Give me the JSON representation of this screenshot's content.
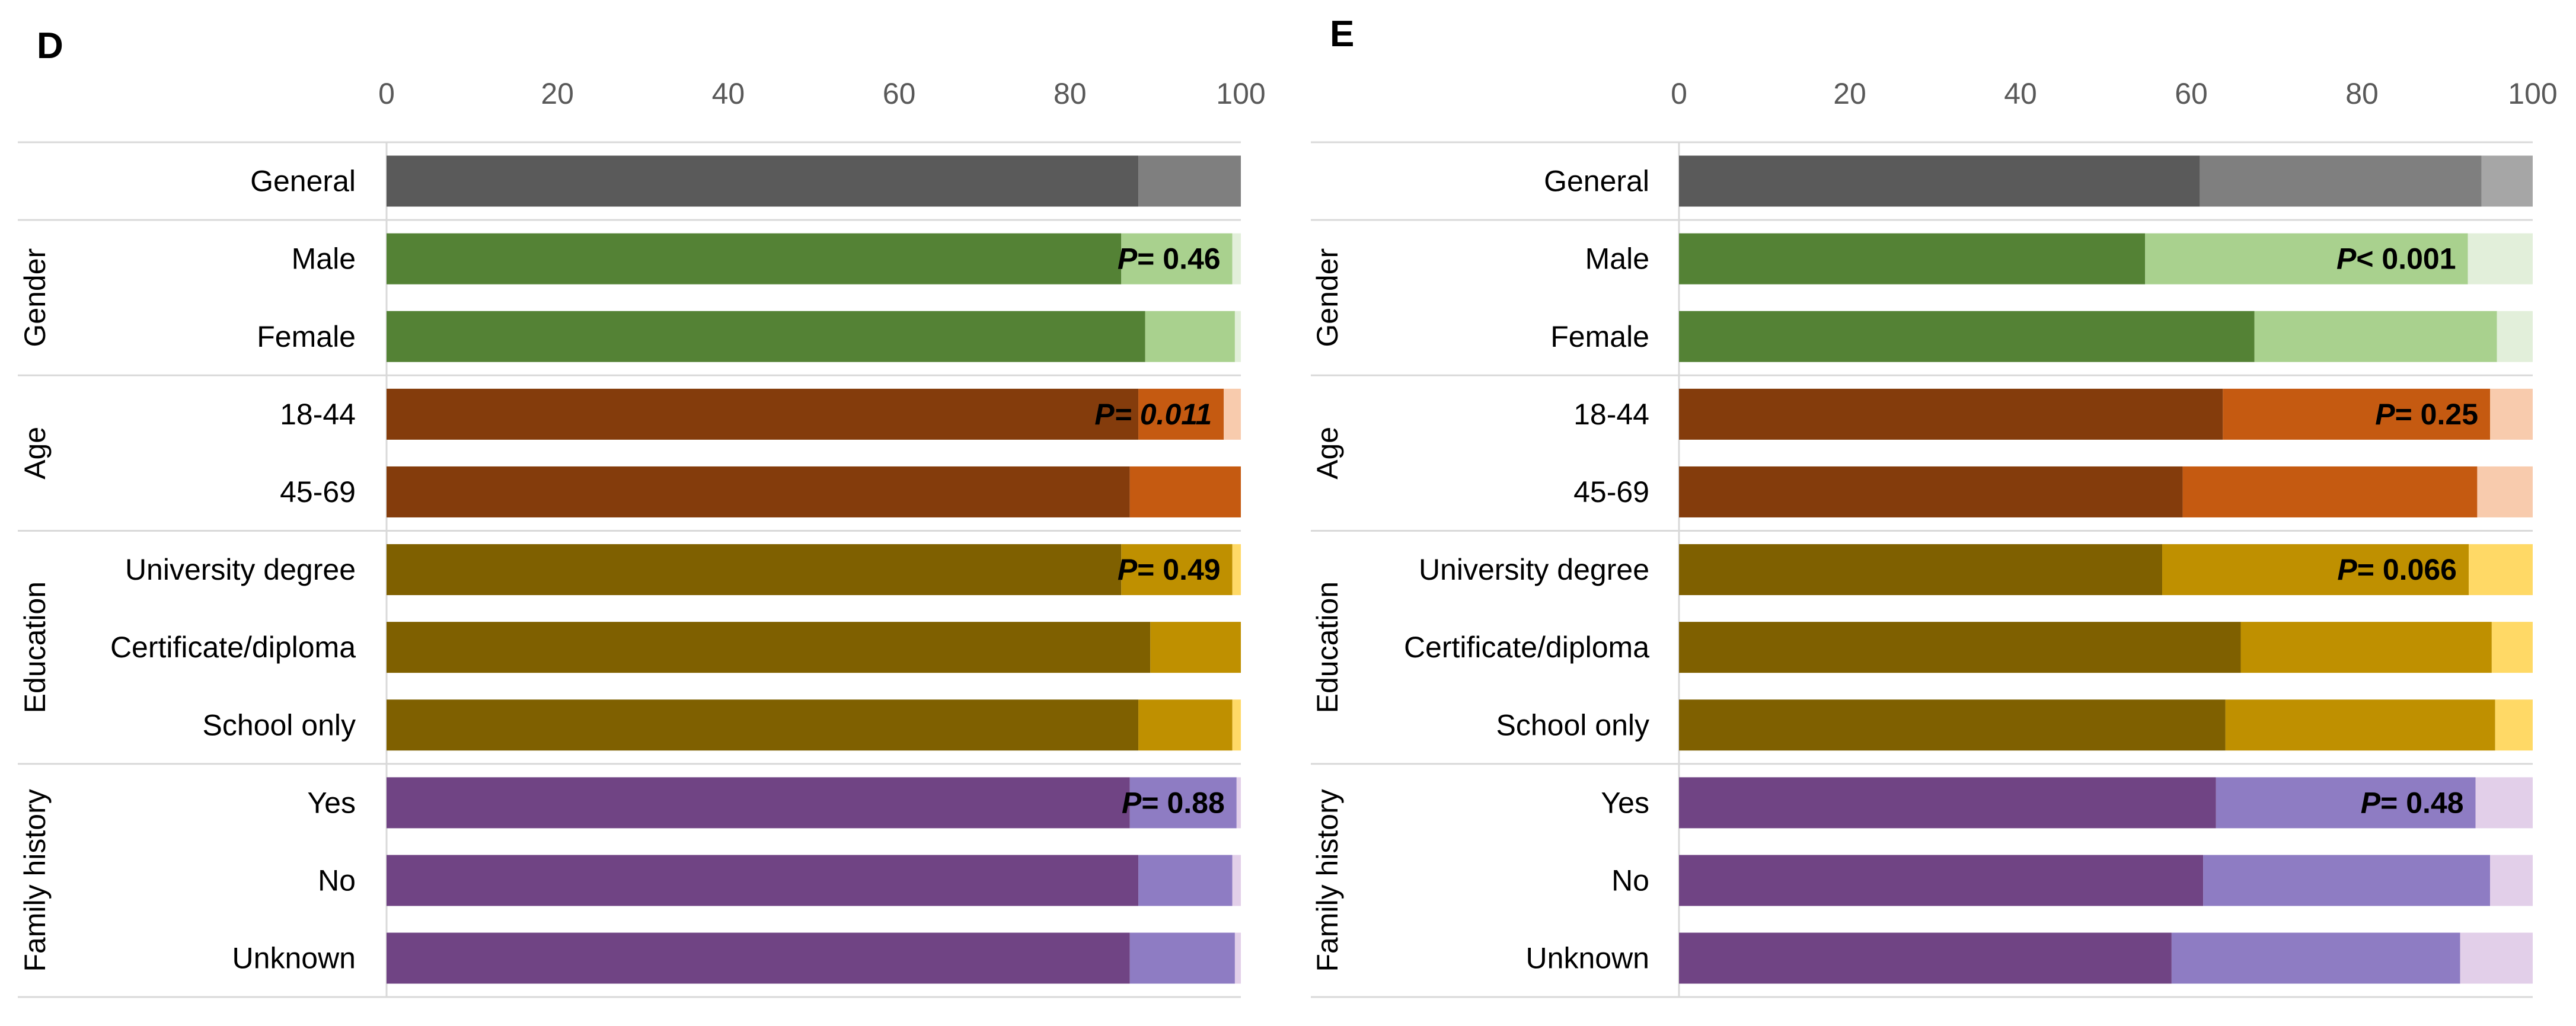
{
  "chart_data": [
    {
      "panel": "D",
      "type": "bar",
      "stacked": true,
      "xlim": [
        0,
        100
      ],
      "ticks": [
        0,
        20,
        40,
        60,
        80,
        100
      ],
      "rows": [
        {
          "group": "",
          "label": "General",
          "values": [
            88,
            12,
            0
          ],
          "colors": [
            "#5a5a5a",
            "#7f7f7f",
            "#a6a6a6"
          ],
          "pvalue": null
        },
        {
          "group": "Gender",
          "label": "Male",
          "values": [
            86,
            13,
            1
          ],
          "colors": [
            "#548235",
            "#a9d18e",
            "#e2efda"
          ],
          "pvalue": {
            "prefix": "P",
            "rest": "= 0.46",
            "italic": false
          }
        },
        {
          "group": "Gender",
          "label": "Female",
          "values": [
            88.8,
            10.5,
            0.7
          ],
          "colors": [
            "#548235",
            "#a9d18e",
            "#e2efda"
          ],
          "pvalue": null
        },
        {
          "group": "Age",
          "label": "18-44",
          "values": [
            88,
            10,
            2
          ],
          "colors": [
            "#843c0c",
            "#c55a11",
            "#f8cbad"
          ],
          "pvalue": {
            "prefix": "P",
            "rest": "= 0.011",
            "italic": true
          }
        },
        {
          "group": "Age",
          "label": "45-69",
          "values": [
            87,
            13,
            0
          ],
          "colors": [
            "#843c0c",
            "#c55a11",
            "#f8cbad"
          ],
          "pvalue": null
        },
        {
          "group": "Education",
          "label": "University degree",
          "values": [
            86,
            13,
            1
          ],
          "colors": [
            "#7f6000",
            "#bf9000",
            "#ffd966"
          ],
          "pvalue": {
            "prefix": "P",
            "rest": "= 0.49",
            "italic": false
          }
        },
        {
          "group": "Education",
          "label": "Certificate/diploma",
          "values": [
            89.4,
            10.6,
            0
          ],
          "colors": [
            "#7f6000",
            "#bf9000",
            "#ffd966"
          ],
          "pvalue": null
        },
        {
          "group": "Education",
          "label": "School only",
          "values": [
            88,
            11,
            1
          ],
          "colors": [
            "#7f6000",
            "#bf9000",
            "#ffd966"
          ],
          "pvalue": null
        },
        {
          "group": "Family history",
          "label": "Yes",
          "values": [
            87,
            12.5,
            0.5
          ],
          "colors": [
            "#704484",
            "#8e7cc3",
            "#e2cfe9"
          ],
          "pvalue": {
            "prefix": "P",
            "rest": "= 0.88",
            "italic": false
          }
        },
        {
          "group": "Family history",
          "label": "No",
          "values": [
            88,
            11,
            1
          ],
          "colors": [
            "#704484",
            "#8e7cc3",
            "#e2cfe9"
          ],
          "pvalue": null
        },
        {
          "group": "Family history",
          "label": "Unknown",
          "values": [
            87,
            12.3,
            0.7
          ],
          "colors": [
            "#704484",
            "#8e7cc3",
            "#e2cfe9"
          ],
          "pvalue": null
        }
      ]
    },
    {
      "panel": "E",
      "type": "bar",
      "stacked": true,
      "xlim": [
        0,
        100
      ],
      "ticks": [
        0,
        20,
        40,
        60,
        80,
        100
      ],
      "rows": [
        {
          "group": "",
          "label": "General",
          "values": [
            61,
            33,
            6
          ],
          "colors": [
            "#5a5a5a",
            "#7f7f7f",
            "#a6a6a6"
          ],
          "pvalue": null
        },
        {
          "group": "Gender",
          "label": "Male",
          "values": [
            54.6,
            37.8,
            7.6
          ],
          "colors": [
            "#548235",
            "#a9d18e",
            "#e2efda"
          ],
          "pvalue": {
            "prefix": "P",
            "rest": "< 0.001",
            "italic": false
          }
        },
        {
          "group": "Gender",
          "label": "Female",
          "values": [
            67.4,
            28.4,
            4.2
          ],
          "colors": [
            "#548235",
            "#a9d18e",
            "#e2efda"
          ],
          "pvalue": null
        },
        {
          "group": "Age",
          "label": "18-44",
          "values": [
            63.7,
            31.3,
            5
          ],
          "colors": [
            "#843c0c",
            "#c55a11",
            "#f8cbad"
          ],
          "pvalue": {
            "prefix": "P",
            "rest": "= 0.25",
            "italic": false
          }
        },
        {
          "group": "Age",
          "label": "45-69",
          "values": [
            59,
            34.5,
            6.5
          ],
          "colors": [
            "#843c0c",
            "#c55a11",
            "#f8cbad"
          ],
          "pvalue": null
        },
        {
          "group": "Education",
          "label": "University degree",
          "values": [
            56.6,
            35.9,
            7.5
          ],
          "colors": [
            "#7f6000",
            "#bf9000",
            "#ffd966"
          ],
          "pvalue": {
            "prefix": "P",
            "rest": "= 0.066",
            "italic": false
          }
        },
        {
          "group": "Education",
          "label": "Certificate/diploma",
          "values": [
            65.8,
            29.4,
            4.8
          ],
          "colors": [
            "#7f6000",
            "#bf9000",
            "#ffd966"
          ],
          "pvalue": null
        },
        {
          "group": "Education",
          "label": "School only",
          "values": [
            64,
            31.6,
            4.4
          ],
          "colors": [
            "#7f6000",
            "#bf9000",
            "#ffd966"
          ],
          "pvalue": null
        },
        {
          "group": "Family history",
          "label": "Yes",
          "values": [
            62.9,
            30.4,
            6.7
          ],
          "colors": [
            "#704484",
            "#8e7cc3",
            "#e2cfe9"
          ],
          "pvalue": {
            "prefix": "P",
            "rest": "= 0.48",
            "italic": false
          }
        },
        {
          "group": "Family history",
          "label": "No",
          "values": [
            61.4,
            33.6,
            5
          ],
          "colors": [
            "#704484",
            "#8e7cc3",
            "#e2cfe9"
          ],
          "pvalue": null
        },
        {
          "group": "Family history",
          "label": "Unknown",
          "values": [
            57.7,
            33.8,
            8.5
          ],
          "colors": [
            "#704484",
            "#8e7cc3",
            "#e2cfe9"
          ],
          "pvalue": null
        }
      ]
    }
  ],
  "colors": {
    "axis": "#d9d9d9",
    "tick_text": "#595959",
    "text": "#000000"
  }
}
